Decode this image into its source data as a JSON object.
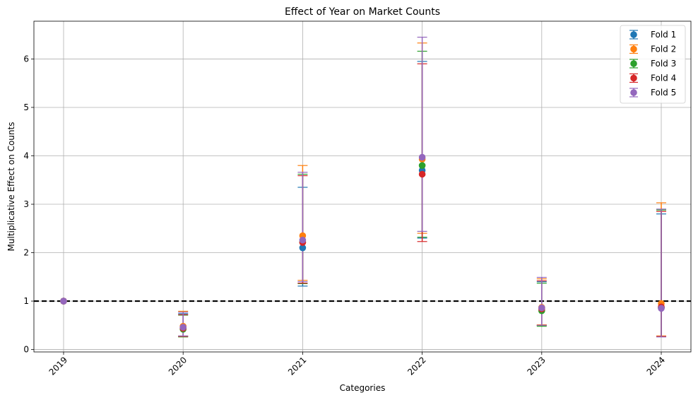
{
  "chart_data": {
    "type": "scatter",
    "title": "Effect of Year on Market Counts",
    "xlabel": "Categories",
    "ylabel": "Multiplicative Effect on Counts",
    "categories": [
      "2019",
      "2020",
      "2021",
      "2022",
      "2023",
      "2024"
    ],
    "ylim": [
      -0.05,
      6.78
    ],
    "yticks": [
      0,
      1,
      2,
      3,
      4,
      5,
      6
    ],
    "grid": true,
    "legend_position": "top-right",
    "reference_line": {
      "y": 1,
      "style": "dashed",
      "color": "#000000"
    },
    "series": [
      {
        "name": "Fold 1",
        "color": "#1f77b4",
        "values": [
          1.0,
          0.45,
          2.1,
          3.7,
          0.86,
          0.86
        ],
        "lower": [
          1.0,
          0.27,
          1.31,
          2.3,
          0.5,
          0.27
        ],
        "upper": [
          1.0,
          0.74,
          3.35,
          5.95,
          1.4,
          2.8
        ]
      },
      {
        "name": "Fold 2",
        "color": "#ff7f0e",
        "values": [
          1.0,
          0.48,
          2.35,
          3.93,
          0.87,
          0.95
        ],
        "lower": [
          1.0,
          0.28,
          1.43,
          2.4,
          0.51,
          0.28
        ],
        "upper": [
          1.0,
          0.79,
          3.8,
          6.33,
          1.46,
          3.03
        ]
      },
      {
        "name": "Fold 3",
        "color": "#2ca02c",
        "values": [
          1.0,
          0.42,
          2.22,
          3.8,
          0.8,
          0.87
        ],
        "lower": [
          1.0,
          0.26,
          1.36,
          2.32,
          0.48,
          0.27
        ],
        "upper": [
          1.0,
          0.71,
          3.62,
          6.16,
          1.37,
          2.88
        ]
      },
      {
        "name": "Fold 4",
        "color": "#d62728",
        "values": [
          1.0,
          0.44,
          2.21,
          3.62,
          0.84,
          0.88
        ],
        "lower": [
          1.0,
          0.27,
          1.37,
          2.23,
          0.5,
          0.27
        ],
        "upper": [
          1.0,
          0.72,
          3.59,
          5.9,
          1.42,
          2.85
        ]
      },
      {
        "name": "Fold 5",
        "color": "#9467bd",
        "values": [
          1.0,
          0.46,
          2.26,
          3.97,
          0.86,
          0.85
        ],
        "lower": [
          1.0,
          0.28,
          1.4,
          2.44,
          0.5,
          0.26
        ],
        "upper": [
          1.0,
          0.77,
          3.66,
          6.45,
          1.49,
          2.9
        ]
      }
    ]
  }
}
